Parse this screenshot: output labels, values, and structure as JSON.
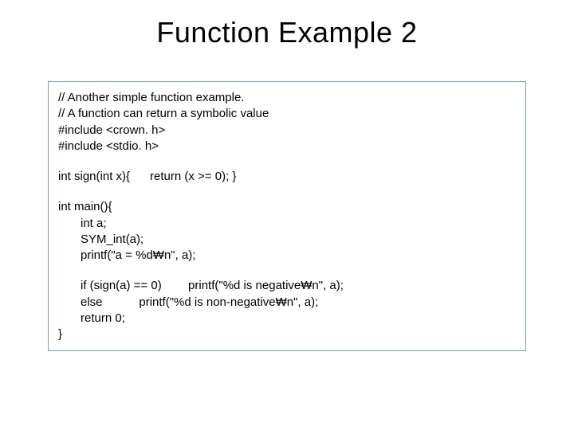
{
  "title": "Function Example 2",
  "code": {
    "l1": "// Another simple function example.",
    "l2": "// A function can return a symbolic value",
    "l3": "#include <crown. h>",
    "l4": "#include <stdio. h>",
    "l5": "int sign(int x){      return (x >= 0); }",
    "l6": "int main(){",
    "l7": "int a;",
    "l8": "SYM_int(a);",
    "l9": "printf(\"a = %d₩n\", a);",
    "l10": "if (sign(a) == 0)        printf(\"%d is negative₩n\", a);",
    "l11": "else           printf(\"%d is non-negative₩n\", a);",
    "l12": "return 0;",
    "l13": "}"
  },
  "styling": {
    "background_color": "#ffffff",
    "title_color": "#000000",
    "title_fontsize": 36,
    "title_fontweight": 300,
    "code_border_color": "#7a9ab8",
    "code_fontsize": 15,
    "code_color": "#000000",
    "slide_width": 720,
    "slide_height": 540
  }
}
